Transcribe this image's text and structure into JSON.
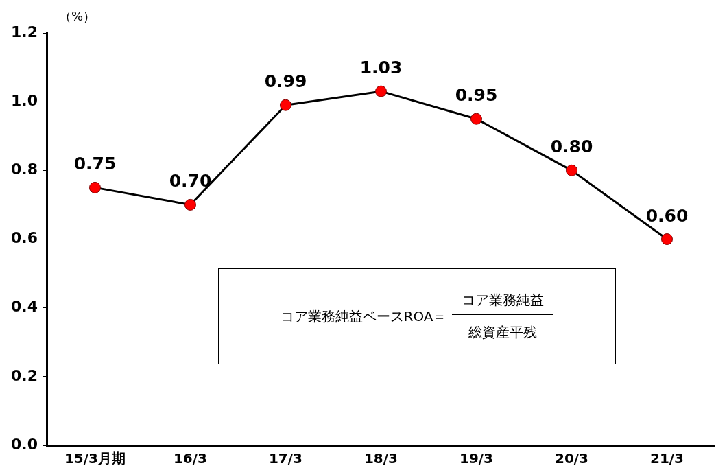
{
  "chart_data": {
    "type": "line",
    "ylabel": "（%）",
    "categories": [
      "15/3月期",
      "16/3",
      "17/3",
      "18/3",
      "19/3",
      "20/3",
      "21/3"
    ],
    "series": [
      {
        "color": "#000000",
        "values": [
          0.75,
          0.7,
          0.99,
          1.03,
          0.95,
          0.8,
          0.6
        ],
        "value_labels": [
          "0.75",
          "0.70",
          "0.99",
          "1.03",
          "0.95",
          "0.80",
          "0.60"
        ]
      }
    ],
    "ylim": [
      0,
      1.2
    ],
    "yticks": [
      {
        "value": 0,
        "label": "0.0"
      },
      {
        "value": 0.2,
        "label": "0.2"
      },
      {
        "value": 0.4,
        "label": "0.4"
      },
      {
        "value": 0.6,
        "label": "0.6"
      },
      {
        "value": 0.8,
        "label": "0.8"
      },
      {
        "value": 1.0,
        "label": "1.0"
      },
      {
        "value": 1.2,
        "label": "1.2"
      }
    ],
    "grid": false,
    "legend": false,
    "marker": "circle",
    "line_style": "solid",
    "annotations": [
      "コア業務純益ベースROA＝",
      "コア業務純益",
      "総資産平残"
    ]
  }
}
